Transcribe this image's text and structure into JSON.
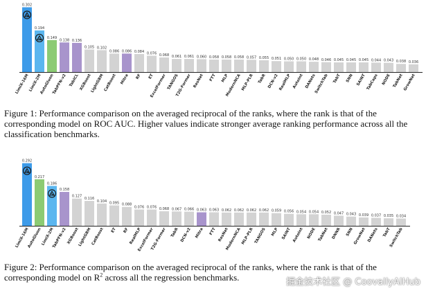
{
  "chart_data": [
    {
      "type": "bar",
      "title": "",
      "xlabel": "",
      "ylabel": "",
      "ylim": [
        0,
        0.31
      ],
      "categories": [
        "LimiX-16M",
        "LimiX-2M",
        "AutoGluon",
        "TabPFN-v2",
        "TabICL",
        "XGBoost",
        "LightGBM",
        "CatBoost",
        "Mitra",
        "RF",
        "ET",
        "ExcelFormer",
        "TANGOS",
        "T2G-Former",
        "ResNet",
        "FTT",
        "MLP",
        "ModernNCA",
        "MLP-PLR",
        "TabR",
        "DCN-v2",
        "RealMLP",
        "AutoInt",
        "DANets",
        "SwitchTab",
        "TabT",
        "SNN",
        "SAINT",
        "TabCaps",
        "NODE",
        "TabNet",
        "GrowNet"
      ],
      "values": [
        0.302,
        0.194,
        0.149,
        0.138,
        0.136,
        0.105,
        0.102,
        0.086,
        0.086,
        0.084,
        0.076,
        0.068,
        0.061,
        0.061,
        0.06,
        0.058,
        0.058,
        0.058,
        0.057,
        0.055,
        0.051,
        0.05,
        0.05,
        0.048,
        0.046,
        0.045,
        0.045,
        0.045,
        0.044,
        0.043,
        0.038,
        0.036
      ],
      "value_labels": [
        "0.302",
        "0.194",
        "0.149",
        "0.138",
        "0.136",
        "0.105",
        "0.102",
        "0.086",
        "0.086",
        "0.084",
        "0.076",
        "0.068",
        "0.061",
        "0.061",
        "0.060",
        "0.058",
        "0.058",
        "0.058",
        "0.057",
        "0.055",
        "0.051",
        "0.050",
        "0.050",
        "0.048",
        "0.046",
        "0.045",
        "0.045",
        "0.045",
        "0.044",
        "0.043",
        "0.038",
        "0.036"
      ],
      "colors": [
        "#3d9be9",
        "#5bb6ef",
        "#8ccb74",
        "#a894cc",
        "#a894cc",
        "#d3d3d3",
        "#d3d3d3",
        "#d3d3d3",
        "#a894cc",
        "#d3d3d3",
        "#d3d3d3",
        "#d3d3d3",
        "#d3d3d3",
        "#d3d3d3",
        "#d3d3d3",
        "#d3d3d3",
        "#d3d3d3",
        "#d3d3d3",
        "#d3d3d3",
        "#d3d3d3",
        "#d3d3d3",
        "#d3d3d3",
        "#d3d3d3",
        "#d3d3d3",
        "#d3d3d3",
        "#d3d3d3",
        "#d3d3d3",
        "#d3d3d3",
        "#d3d3d3",
        "#d3d3d3",
        "#d3d3d3",
        "#d3d3d3"
      ],
      "logo_bars": [
        0,
        1
      ],
      "caption": "Figure 1: Performance comparison on the averaged reciprocal of the ranks, where the rank is that of the corresponding model on ROC AUC. Higher values indicate stronger average ranking performance across all the classification benchmarks."
    },
    {
      "type": "bar",
      "title": "",
      "xlabel": "",
      "ylabel": "",
      "ylim": [
        0,
        0.31
      ],
      "categories": [
        "LimiX-16M",
        "AutoGluon",
        "LimiX-2M",
        "TabPFN-v2",
        "XGBoost",
        "LightGBM",
        "CatBoost",
        "ET",
        "RF",
        "RealMLP",
        "ExcelFormer",
        "T2G-Former",
        "TabR",
        "DCN-v2",
        "Mitra",
        "FTT",
        "ResNet",
        "ModernNCA",
        "MLP-PLR",
        "TANGOS",
        "MLP",
        "SAINT",
        "AutoInt",
        "NODE",
        "TabNet",
        "DNNR",
        "SNN",
        "GrowNet",
        "DANets",
        "TabT",
        "SwitchTab"
      ],
      "values": [
        0.292,
        0.217,
        0.186,
        0.158,
        0.127,
        0.116,
        0.104,
        0.095,
        0.088,
        0.076,
        0.076,
        0.068,
        0.067,
        0.066,
        0.063,
        0.063,
        0.062,
        0.062,
        0.062,
        0.062,
        0.059,
        0.056,
        0.054,
        0.054,
        0.052,
        0.047,
        0.043,
        0.039,
        0.037,
        0.035,
        0.034
      ],
      "value_labels": [
        "0.292",
        "0.217",
        "0.186",
        "0.158",
        "0.127",
        "0.116",
        "0.104",
        "0.095",
        "0.088",
        "0.076",
        "0.076",
        "0.068",
        "0.067",
        "0.066",
        "0.063",
        "0.063",
        "0.062",
        "0.062",
        "0.062",
        "0.062",
        "0.059",
        "0.056",
        "0.054",
        "0.054",
        "0.052",
        "0.047",
        "0.043",
        "0.039",
        "0.037",
        "0.035",
        "0.034"
      ],
      "colors": [
        "#3d9be9",
        "#8ccb74",
        "#5bb6ef",
        "#a894cc",
        "#d3d3d3",
        "#d3d3d3",
        "#d3d3d3",
        "#d3d3d3",
        "#d3d3d3",
        "#d3d3d3",
        "#d3d3d3",
        "#d3d3d3",
        "#d3d3d3",
        "#d3d3d3",
        "#a894cc",
        "#d3d3d3",
        "#d3d3d3",
        "#d3d3d3",
        "#d3d3d3",
        "#d3d3d3",
        "#d3d3d3",
        "#d3d3d3",
        "#d3d3d3",
        "#d3d3d3",
        "#d3d3d3",
        "#d3d3d3",
        "#d3d3d3",
        "#d3d3d3",
        "#d3d3d3",
        "#d3d3d3",
        "#d3d3d3"
      ],
      "logo_bars": [
        0,
        2
      ],
      "caption_pre": "Figure 2: Performance comparison on the averaged reciprocal of the ranks, where the rank is that of the corresponding model on R",
      "caption_sup": "2",
      "caption_post": " across all the regression benchmarks."
    }
  ],
  "watermark": "掘金技术社区 @ CoovallyAIHub"
}
